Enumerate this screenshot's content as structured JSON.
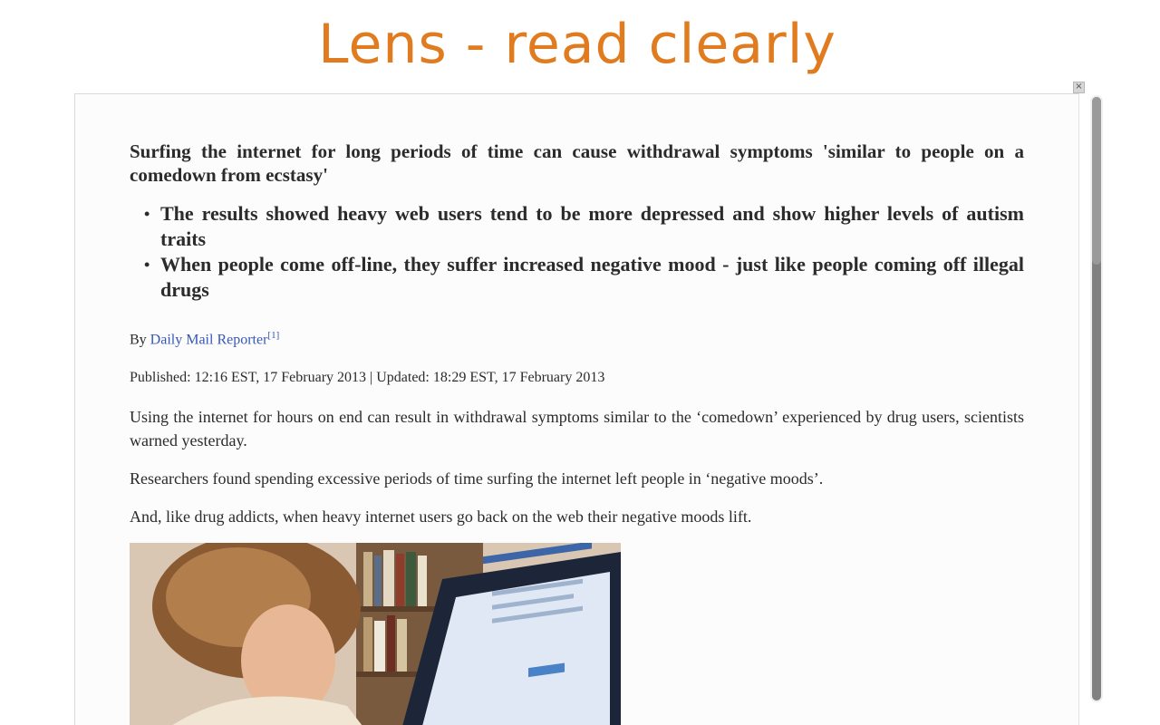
{
  "app": {
    "title": "Lens - read clearly",
    "close_label": "×"
  },
  "article": {
    "headline": "Surfing the internet for long periods of time can cause withdrawal symptoms 'similar to people on a comedown from ecstasy'",
    "bullets": [
      "The results showed heavy web users tend to be more depressed and show higher levels of autism traits",
      "When people come off-line, they suffer increased negative mood - just like people coming off illegal drugs"
    ],
    "byline_prefix": "By ",
    "author": "Daily Mail Reporter",
    "author_ref": "[1]",
    "dateline": "Published: 12:16 EST, 17 February 2013 | Updated: 18:29 EST, 17 February 2013",
    "paragraphs": [
      "Using the internet for hours on end can result in withdrawal symptoms similar to the ‘comedown’ experienced by drug users, scientists warned yesterday.",
      "Researchers found spending excessive periods of time surfing the internet left people in ‘negative moods’.",
      "And, like drug addicts, when heavy internet users go back on the web their negative moods lift."
    ]
  },
  "colors": {
    "title": "#e07b1f",
    "link": "#3658b8",
    "text": "#2b2b2b"
  }
}
